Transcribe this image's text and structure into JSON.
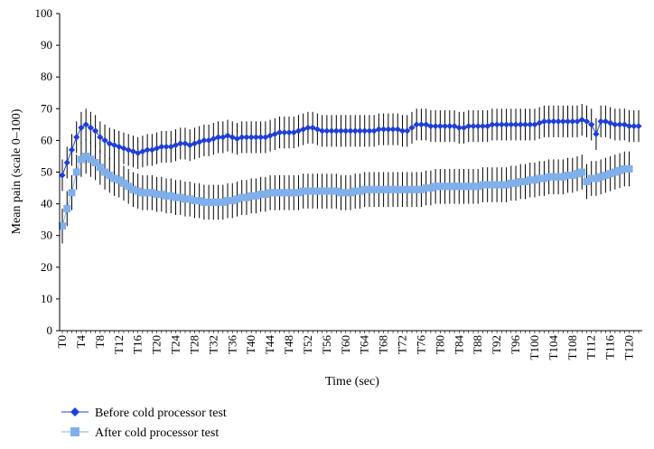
{
  "chart_data": {
    "type": "line",
    "title": "",
    "xlabel": "Time (sec)",
    "ylabel": "Mean pain (scale 0–100)",
    "ylim": [
      0,
      100
    ],
    "yticks": [
      0,
      10,
      20,
      30,
      40,
      50,
      60,
      70,
      80,
      90,
      100
    ],
    "x_tick_labels": [
      "T0",
      "T4",
      "T8",
      "T12",
      "T16",
      "T20",
      "T24",
      "T28",
      "T32",
      "T36",
      "T40",
      "T44",
      "T48",
      "T52",
      "T56",
      "T60",
      "T64",
      "T68",
      "T72",
      "T76",
      "T80",
      "T84",
      "T88",
      "T92",
      "T96",
      "T100",
      "T104",
      "T108",
      "T112",
      "T116",
      "T120"
    ],
    "grid": false,
    "legend_position": "bottom-left",
    "colors": {
      "before": "#1f3fd6",
      "after": "#7fb0ec",
      "errorbar": "#000000",
      "axis": "#000000"
    },
    "series": [
      {
        "name": "Before cold processor test",
        "marker": "diamond",
        "values": [
          49,
          53,
          57,
          61,
          64,
          65,
          64,
          63,
          61,
          60,
          59,
          58.5,
          58,
          57.5,
          57,
          56.5,
          56,
          56.5,
          57,
          57,
          57.5,
          58,
          58,
          58,
          58.5,
          59,
          59,
          58.5,
          59,
          59.5,
          60,
          60,
          60.5,
          61,
          61,
          61.5,
          61,
          60.5,
          61,
          61,
          61,
          61,
          61,
          61,
          61.5,
          62,
          62.5,
          62.5,
          62.5,
          62.5,
          63,
          63.5,
          64,
          64,
          63.5,
          63,
          63,
          63,
          63,
          63,
          63,
          63,
          63,
          63,
          63,
          63,
          63,
          63.5,
          63.5,
          63.5,
          63.5,
          63.5,
          63,
          63,
          64,
          65,
          65,
          65,
          64.5,
          64.5,
          64.5,
          64.5,
          64.5,
          64.5,
          64,
          64,
          64.5,
          64.5,
          64.5,
          64.5,
          64.5,
          65,
          65,
          65,
          65,
          65,
          65,
          65,
          65,
          65,
          65,
          65.5,
          66,
          66,
          66,
          66,
          66,
          66,
          66,
          66,
          66.5,
          66,
          65,
          62,
          66,
          66,
          65.5,
          65,
          65,
          65,
          64.5,
          64.5,
          64.5
        ],
        "error": 5
      },
      {
        "name": "After cold processor test",
        "marker": "square",
        "values": [
          33,
          38.5,
          43.5,
          50,
          54,
          55,
          54,
          53,
          51.5,
          50,
          49,
          48,
          47.5,
          46.5,
          45.5,
          44.5,
          44,
          43.5,
          43.5,
          43.5,
          43,
          43,
          42.5,
          42.5,
          42,
          42,
          41.5,
          41.5,
          41,
          41,
          40.5,
          40.5,
          40.5,
          40.5,
          40.5,
          41,
          41,
          41.5,
          42,
          42,
          42.5,
          42.5,
          43,
          43,
          43.5,
          43.5,
          43.5,
          43.5,
          43.5,
          43.5,
          43.5,
          44,
          44,
          44,
          44,
          44,
          44,
          44,
          44,
          43.5,
          43.5,
          43.5,
          44,
          44,
          44.5,
          44.5,
          44.5,
          44.5,
          44.5,
          44.5,
          44.5,
          44.5,
          44.5,
          44.5,
          44.5,
          44.5,
          44.5,
          45,
          45,
          45.5,
          45.5,
          45.5,
          45.5,
          45.5,
          45.5,
          45.5,
          45.5,
          45.5,
          45.5,
          46,
          46,
          46,
          46,
          46,
          46,
          46.5,
          46.5,
          47,
          47,
          47.5,
          47.5,
          48,
          48,
          48.5,
          48.5,
          48.5,
          48.5,
          49,
          49,
          49.5,
          50,
          47,
          48,
          48,
          48.5,
          49,
          49.5,
          50,
          50.5,
          51,
          51
        ],
        "error": 5.5
      }
    ]
  }
}
